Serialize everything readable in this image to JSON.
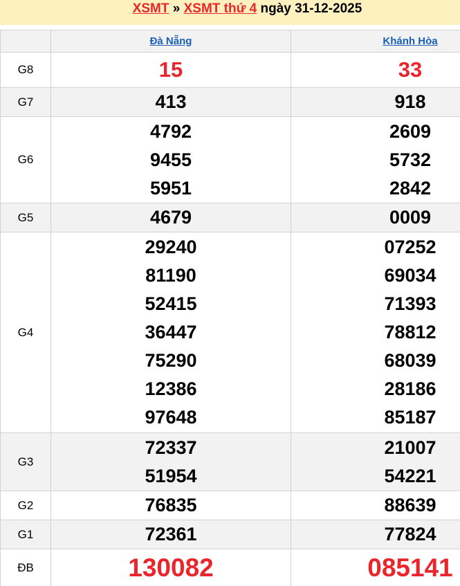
{
  "title": {
    "link1": "XSMT",
    "sep": "»",
    "link2": "XSMT thứ 4",
    "date_text": "ngày 31-12-2025"
  },
  "provinces": [
    "Đà Nẵng",
    "Khánh Hòa"
  ],
  "colors": {
    "accent": "#e8262c",
    "link": "#1a5fb4",
    "header_bg": "#fdf1c0"
  },
  "prizes": [
    {
      "label": "G8",
      "style": "big",
      "values": [
        [
          "15"
        ],
        [
          "33"
        ]
      ]
    },
    {
      "label": "G7",
      "style": "num",
      "values": [
        [
          "413"
        ],
        [
          "918"
        ]
      ]
    },
    {
      "label": "G6",
      "style": "num",
      "values": [
        [
          "4792",
          "9455",
          "5951"
        ],
        [
          "2609",
          "5732",
          "2842"
        ]
      ]
    },
    {
      "label": "G5",
      "style": "num",
      "values": [
        [
          "4679"
        ],
        [
          "0009"
        ]
      ]
    },
    {
      "label": "G4",
      "style": "num",
      "values": [
        [
          "29240",
          "81190",
          "52415",
          "36447",
          "75290",
          "12386",
          "97648"
        ],
        [
          "07252",
          "69034",
          "71393",
          "78812",
          "68039",
          "28186",
          "85187"
        ]
      ]
    },
    {
      "label": "G3",
      "style": "num",
      "values": [
        [
          "72337",
          "51954"
        ],
        [
          "21007",
          "54221"
        ]
      ]
    },
    {
      "label": "G2",
      "style": "num",
      "values": [
        [
          "76835"
        ],
        [
          "88639"
        ]
      ]
    },
    {
      "label": "G1",
      "style": "num",
      "values": [
        [
          "72361"
        ],
        [
          "77824"
        ]
      ]
    },
    {
      "label": "ĐB",
      "style": "huge",
      "values": [
        [
          "130082"
        ],
        [
          "085141"
        ]
      ]
    }
  ]
}
